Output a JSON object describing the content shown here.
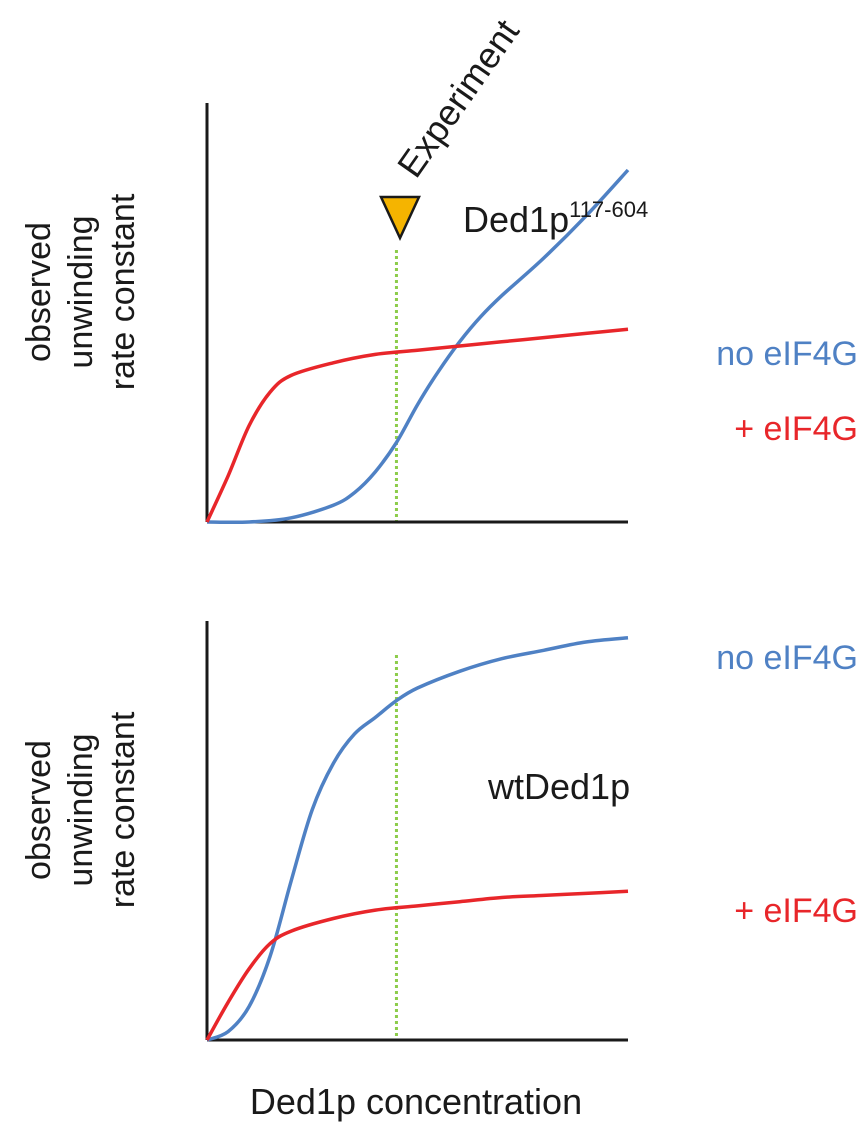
{
  "chart_data": [
    {
      "type": "line",
      "panel_label": "Ded1p",
      "panel_label_sup": "117-604",
      "ylabel_lines": [
        "observed",
        "unwinding",
        "rate constant"
      ],
      "xlabel": "",
      "annotation": "Experiment",
      "marker": "triangle-down",
      "experiment_x": 0.45,
      "xlim": [
        0,
        1
      ],
      "ylim": [
        0,
        1
      ],
      "axes": "left-bottom only, no ticks",
      "series": [
        {
          "name": "no eIF4G",
          "color": "#4f81c4",
          "x": [
            0.0,
            0.1,
            0.2,
            0.3,
            0.35,
            0.4,
            0.45,
            0.5,
            0.55,
            0.6,
            0.65,
            0.7,
            0.8,
            0.9,
            1.0
          ],
          "y": [
            0.0,
            0.0,
            0.01,
            0.04,
            0.07,
            0.12,
            0.19,
            0.28,
            0.36,
            0.43,
            0.49,
            0.54,
            0.63,
            0.73,
            0.84
          ]
        },
        {
          "name": "+ eIF4G",
          "color": "#e8262a",
          "x": [
            0.0,
            0.05,
            0.1,
            0.15,
            0.2,
            0.3,
            0.4,
            0.5,
            0.6,
            0.7,
            0.8,
            0.9,
            1.0
          ],
          "y": [
            0.0,
            0.11,
            0.23,
            0.31,
            0.35,
            0.38,
            0.4,
            0.41,
            0.42,
            0.43,
            0.44,
            0.45,
            0.46
          ]
        }
      ]
    },
    {
      "type": "line",
      "panel_label": "wtDed1p",
      "ylabel_lines": [
        "observed",
        "unwinding",
        "rate constant"
      ],
      "xlabel": "Ded1p concentration",
      "experiment_x": 0.45,
      "xlim": [
        0,
        1
      ],
      "ylim": [
        0,
        1
      ],
      "axes": "left-bottom only, no ticks",
      "series": [
        {
          "name": "no eIF4G",
          "color": "#4f81c4",
          "x": [
            0.0,
            0.05,
            0.1,
            0.15,
            0.2,
            0.25,
            0.3,
            0.35,
            0.4,
            0.45,
            0.5,
            0.6,
            0.7,
            0.8,
            0.9,
            1.0
          ],
          "y": [
            0.0,
            0.02,
            0.08,
            0.2,
            0.38,
            0.55,
            0.66,
            0.73,
            0.77,
            0.81,
            0.84,
            0.88,
            0.91,
            0.93,
            0.95,
            0.96
          ]
        },
        {
          "name": "+ eIF4G",
          "color": "#e8262a",
          "x": [
            0.0,
            0.05,
            0.1,
            0.15,
            0.2,
            0.3,
            0.4,
            0.5,
            0.6,
            0.7,
            0.8,
            0.9,
            1.0
          ],
          "y": [
            0.0,
            0.09,
            0.17,
            0.23,
            0.26,
            0.29,
            0.31,
            0.32,
            0.33,
            0.34,
            0.345,
            0.35,
            0.355
          ]
        }
      ]
    }
  ],
  "colors": {
    "axis": "#1a1a1a",
    "experiment_line": "#8ccc4a",
    "marker_fill": "#f5b400",
    "marker_stroke": "#1a1a1a"
  }
}
